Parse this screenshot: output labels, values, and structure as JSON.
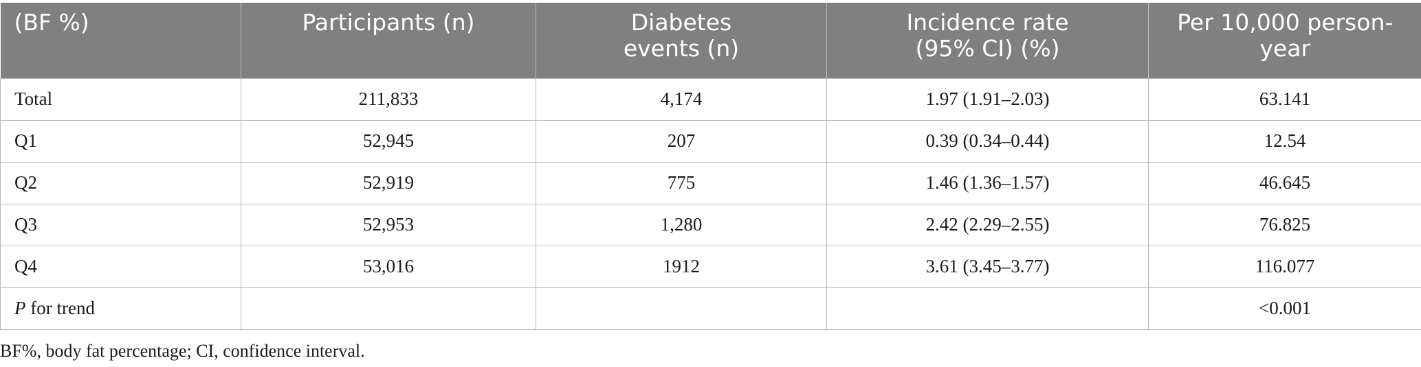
{
  "table": {
    "headers": [
      "(BF %)",
      "Participants (n)",
      "Diabetes events (n)",
      "Incidence rate (95% CI) (%)",
      "Per 10,000 person-year"
    ],
    "rows": [
      [
        "Total",
        "211,833",
        "4,174",
        "1.97 (1.91–2.03)",
        "63.141"
      ],
      [
        "Q1",
        "52,945",
        "207",
        "0.39 (0.34–0.44)",
        "12.54"
      ],
      [
        "Q2",
        "52,919",
        "775",
        "1.46 (1.36–1.57)",
        "46.645"
      ],
      [
        "Q3",
        "52,953",
        "1,280",
        "2.42 (2.29–2.55)",
        "76.825"
      ],
      [
        "Q4",
        "53,016",
        "1912",
        "3.61 (3.45–3.77)",
        "116.077"
      ]
    ],
    "trend_row": {
      "p_label": "P",
      "label_rest": " for trend",
      "cells": [
        "",
        "",
        "",
        "<0.001"
      ]
    }
  },
  "footnote": "BF%, body fat percentage; CI, confidence interval."
}
